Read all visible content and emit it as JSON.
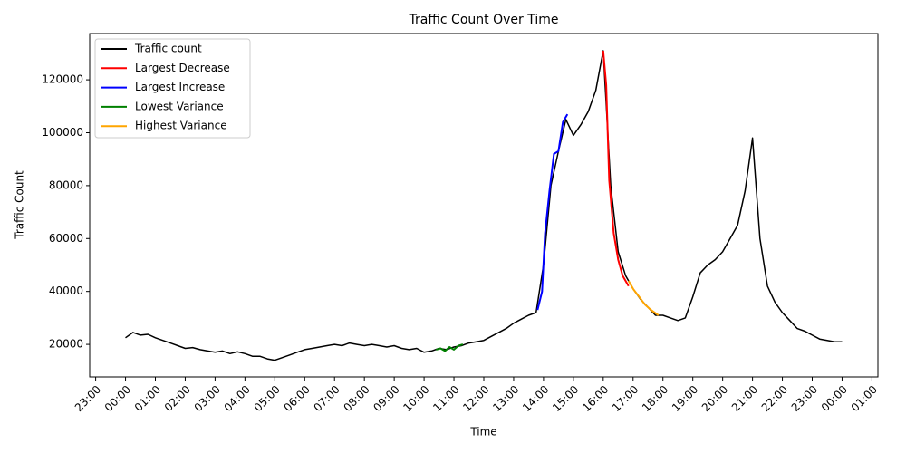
{
  "chart_data": {
    "type": "line",
    "title": "Traffic Count Over Time",
    "x_label": "Time",
    "y_label": "Traffic Count",
    "legend": "upper left",
    "xlim": [
      -1.2,
      25.2
    ],
    "ylim": [
      7700,
      137500
    ],
    "xticks": [
      {
        "value": -1,
        "label": "23:00"
      },
      {
        "value": 0,
        "label": "00:00"
      },
      {
        "value": 1,
        "label": "01:00"
      },
      {
        "value": 2,
        "label": "02:00"
      },
      {
        "value": 3,
        "label": "03:00"
      },
      {
        "value": 4,
        "label": "04:00"
      },
      {
        "value": 5,
        "label": "05:00"
      },
      {
        "value": 6,
        "label": "06:00"
      },
      {
        "value": 7,
        "label": "07:00"
      },
      {
        "value": 8,
        "label": "08:00"
      },
      {
        "value": 9,
        "label": "09:00"
      },
      {
        "value": 10,
        "label": "10:00"
      },
      {
        "value": 11,
        "label": "11:00"
      },
      {
        "value": 12,
        "label": "12:00"
      },
      {
        "value": 13,
        "label": "13:00"
      },
      {
        "value": 14,
        "label": "14:00"
      },
      {
        "value": 15,
        "label": "15:00"
      },
      {
        "value": 16,
        "label": "16:00"
      },
      {
        "value": 17,
        "label": "17:00"
      },
      {
        "value": 18,
        "label": "18:00"
      },
      {
        "value": 19,
        "label": "19:00"
      },
      {
        "value": 20,
        "label": "20:00"
      },
      {
        "value": 21,
        "label": "21:00"
      },
      {
        "value": 22,
        "label": "22:00"
      },
      {
        "value": 23,
        "label": "23:00"
      },
      {
        "value": 24,
        "label": "00:00"
      },
      {
        "value": 25,
        "label": "01:00"
      }
    ],
    "yticks": [
      20000,
      40000,
      60000,
      80000,
      100000,
      120000
    ],
    "series": [
      {
        "name": "Traffic count",
        "color": "#000000",
        "x": [
          0,
          0.25,
          0.5,
          0.75,
          1,
          1.25,
          1.5,
          1.75,
          2,
          2.25,
          2.5,
          2.75,
          3,
          3.25,
          3.5,
          3.75,
          4,
          4.25,
          4.5,
          4.75,
          5,
          5.25,
          5.5,
          5.75,
          6,
          6.25,
          6.5,
          6.75,
          7,
          7.25,
          7.5,
          7.75,
          8,
          8.25,
          8.5,
          8.75,
          9,
          9.25,
          9.5,
          9.75,
          10,
          10.25,
          10.5,
          10.75,
          11,
          11.25,
          11.5,
          11.75,
          12,
          12.25,
          12.5,
          12.75,
          13,
          13.25,
          13.5,
          13.75,
          14,
          14.25,
          14.5,
          14.75,
          15,
          15.25,
          15.5,
          15.75,
          16,
          16.25,
          16.5,
          16.75,
          17,
          17.25,
          17.5,
          17.75,
          18,
          18.25,
          18.5,
          18.75,
          19,
          19.25,
          19.5,
          19.75,
          20,
          20.25,
          20.5,
          20.75,
          21,
          21.25,
          21.5,
          21.75,
          22,
          22.25,
          22.5,
          22.75,
          23,
          23.25,
          23.5,
          23.75,
          24
        ],
        "values": [
          22500,
          24500,
          23500,
          23800,
          22500,
          21500,
          20500,
          19500,
          18500,
          18800,
          18000,
          17500,
          17000,
          17500,
          16500,
          17200,
          16500,
          15500,
          15500,
          14500,
          14000,
          15000,
          16000,
          17000,
          18000,
          18500,
          19000,
          19500,
          20000,
          19500,
          20500,
          20000,
          19500,
          20000,
          19500,
          19000,
          19500,
          18500,
          18000,
          18500,
          17000,
          17500,
          18500,
          18000,
          19000,
          19500,
          20500,
          21000,
          21500,
          23000,
          24500,
          26000,
          28000,
          29500,
          31000,
          32000,
          50000,
          80000,
          93000,
          105000,
          99000,
          103000,
          108000,
          116000,
          131000,
          80000,
          55000,
          46000,
          41000,
          37000,
          34000,
          31000,
          31000,
          30000,
          29000,
          30000,
          38000,
          47000,
          50000,
          52000,
          55000,
          60000,
          65000,
          78000,
          98000,
          60000,
          42000,
          36000,
          32000,
          29000,
          26000,
          25000,
          23500,
          22000,
          21500,
          21000,
          21000
        ]
      },
      {
        "name": "Largest Decrease",
        "color": "#ff0000",
        "x": [
          16.0,
          16.1,
          16.2,
          16.35,
          16.5,
          16.65,
          16.85
        ],
        "values": [
          131000,
          118000,
          82000,
          62000,
          52000,
          46000,
          42000
        ]
      },
      {
        "name": "Largest Increase",
        "color": "#0000ff",
        "x": [
          13.8,
          13.95,
          14.05,
          14.2,
          14.35,
          14.5,
          14.65,
          14.8
        ],
        "values": [
          33000,
          40000,
          62000,
          78000,
          92000,
          93000,
          104000,
          107000
        ]
      },
      {
        "name": "Lowest Variance",
        "color": "#008000",
        "x": [
          10.4,
          10.55,
          10.7,
          10.85,
          11.0,
          11.15,
          11.3
        ],
        "values": [
          18000,
          18500,
          17500,
          19000,
          18000,
          19500,
          20000
        ]
      },
      {
        "name": "Highest Variance",
        "color": "#ffa500",
        "x": [
          16.85,
          17.0,
          17.2,
          17.4,
          17.6,
          17.85
        ],
        "values": [
          44000,
          41000,
          38000,
          35000,
          33000,
          31000
        ]
      }
    ]
  }
}
